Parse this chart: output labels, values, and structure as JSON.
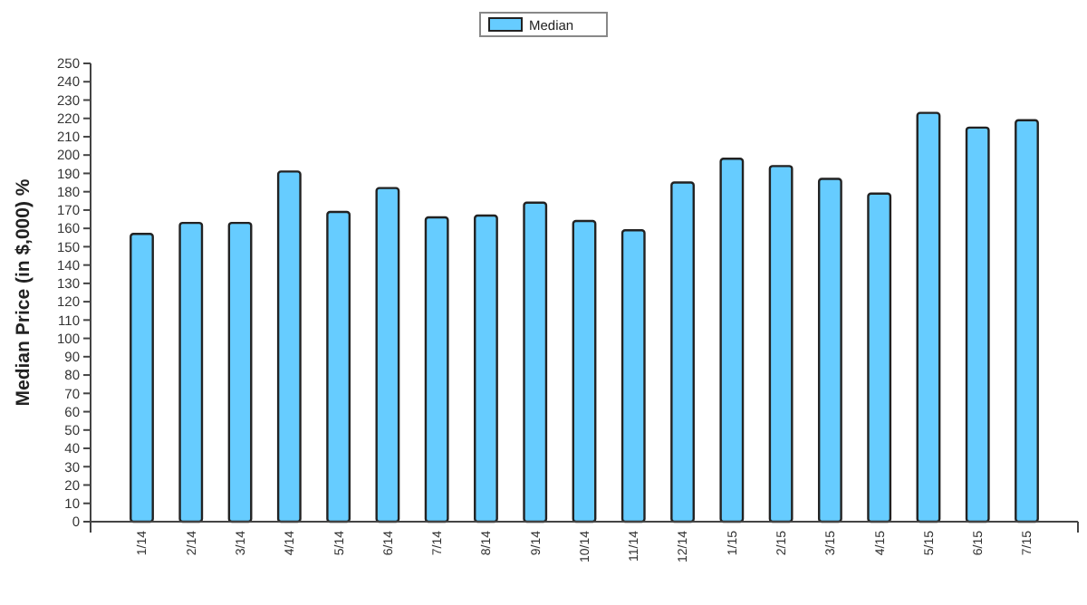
{
  "chart_data": {
    "type": "bar",
    "ylabel": "Median Price (in $,000) %",
    "categories": [
      "1/14",
      "2/14",
      "3/14",
      "4/14",
      "5/14",
      "6/14",
      "7/14",
      "8/14",
      "9/14",
      "10/14",
      "11/14",
      "12/14",
      "1/15",
      "2/15",
      "3/15",
      "4/15",
      "5/15",
      "6/15",
      "7/15"
    ],
    "series": [
      {
        "name": "Median",
        "color": "#66ccff",
        "values": [
          157,
          163,
          163,
          191,
          169,
          182,
          166,
          167,
          174,
          164,
          159,
          185,
          198,
          194,
          187,
          179,
          223,
          215,
          219
        ]
      }
    ],
    "ylim": [
      0,
      250
    ],
    "yticks": [
      0,
      10,
      20,
      30,
      40,
      50,
      60,
      70,
      80,
      90,
      100,
      110,
      120,
      130,
      140,
      150,
      160,
      170,
      180,
      190,
      200,
      210,
      220,
      230,
      240,
      250
    ],
    "legend": "top",
    "grid": false
  }
}
